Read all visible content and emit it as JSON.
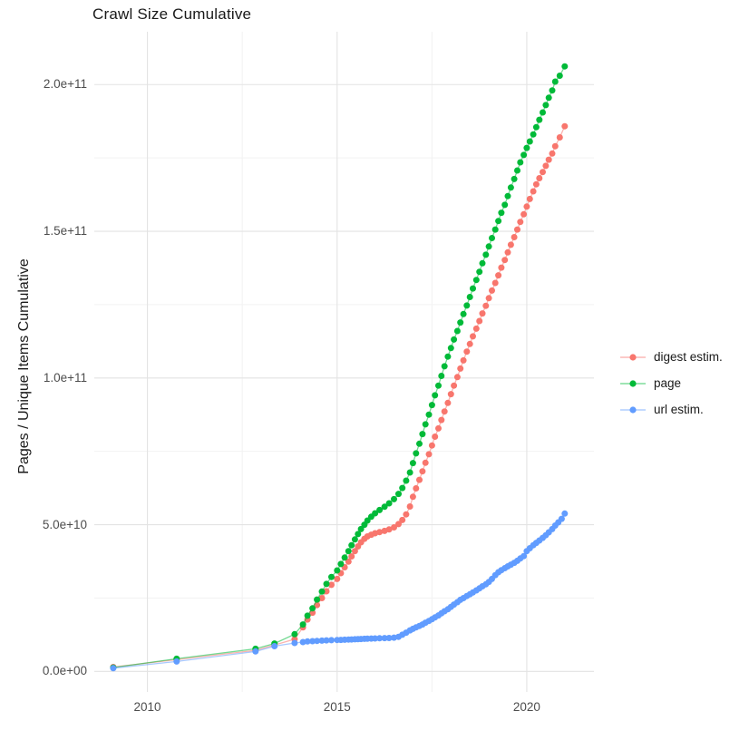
{
  "title": "Crawl Size Cumulative",
  "y_axis_title": "Pages / Unique Items Cumulative",
  "legend": {
    "items": [
      {
        "label": "digest estim."
      },
      {
        "label": "page"
      },
      {
        "label": "url estim."
      }
    ]
  },
  "colors": {
    "grid_major": "#E3E3E3",
    "grid_minor": "#F2F2F2",
    "tick_text": "#4D4D4D"
  },
  "chart_data": {
    "type": "scatter",
    "title": "Crawl Size Cumulative",
    "xlabel": "",
    "ylabel": "Pages / Unique Items Cumulative",
    "xlim": [
      2008.6,
      2021.77
    ],
    "ylim": [
      -7000000000.0,
      218000000000.0
    ],
    "grid": true,
    "legend_position": "right",
    "x_axis": {
      "major": [
        2010,
        2015,
        2020
      ],
      "labels": [
        "2010",
        "2015",
        "2020"
      ],
      "minor": [
        2012.5,
        2017.5
      ]
    },
    "y_axis": {
      "major": [
        0,
        50000000000.0,
        100000000000.0,
        150000000000.0,
        200000000000.0
      ],
      "labels": [
        "0.0e+00",
        "5.0e+10",
        "1.0e+11",
        "1.5e+11",
        "2.0e+11"
      ],
      "minor": [
        25000000000.0,
        75000000000.0,
        125000000000.0,
        175000000000.0
      ]
    },
    "series": [
      {
        "name": "digest estim.",
        "color": "#F8766D",
        "points": [
          [
            2009.1,
            1500000000.0
          ],
          [
            2010.77,
            4000000000.0
          ],
          [
            2012.85,
            7200000000.0
          ],
          [
            2013.35,
            9000000000.0
          ],
          [
            2013.88,
            11000000000.0
          ],
          [
            2014.1,
            15000000000.0
          ],
          [
            2014.22,
            17700000000.0
          ],
          [
            2014.35,
            20000000000.0
          ],
          [
            2014.47,
            22600000000.0
          ],
          [
            2014.6,
            25000000000.0
          ],
          [
            2014.72,
            27300000000.0
          ],
          [
            2014.85,
            29500000000.0
          ],
          [
            2015.0,
            31500000000.0
          ],
          [
            2015.1,
            33500000000.0
          ],
          [
            2015.2,
            35500000000.0
          ],
          [
            2015.3,
            37400000000.0
          ],
          [
            2015.38,
            39200000000.0
          ],
          [
            2015.47,
            41000000000.0
          ],
          [
            2015.55,
            42600000000.0
          ],
          [
            2015.63,
            44000000000.0
          ],
          [
            2015.72,
            45200000000.0
          ],
          [
            2015.8,
            46000000000.0
          ],
          [
            2015.9,
            46600000000.0
          ],
          [
            2016.0,
            47100000000.0
          ],
          [
            2016.12,
            47500000000.0
          ],
          [
            2016.25,
            47900000000.0
          ],
          [
            2016.37,
            48400000000.0
          ],
          [
            2016.5,
            49100000000.0
          ],
          [
            2016.62,
            50200000000.0
          ],
          [
            2016.72,
            51600000000.0
          ],
          [
            2016.82,
            53500000000.0
          ],
          [
            2016.92,
            56200000000.0
          ],
          [
            2017.0,
            59500000000.0
          ],
          [
            2017.08,
            62400000000.0
          ],
          [
            2017.17,
            65300000000.0
          ],
          [
            2017.25,
            68200000000.0
          ],
          [
            2017.33,
            71100000000.0
          ],
          [
            2017.42,
            74000000000.0
          ],
          [
            2017.5,
            77000000000.0
          ],
          [
            2017.58,
            80000000000.0
          ],
          [
            2017.67,
            82800000000.0
          ],
          [
            2017.75,
            85700000000.0
          ],
          [
            2017.83,
            88600000000.0
          ],
          [
            2017.92,
            91500000000.0
          ],
          [
            2018.0,
            94500000000.0
          ],
          [
            2018.08,
            97400000000.0
          ],
          [
            2018.17,
            100300000000.0
          ],
          [
            2018.25,
            103200000000.0
          ],
          [
            2018.33,
            106000000000.0
          ],
          [
            2018.42,
            109000000000.0
          ],
          [
            2018.5,
            111600000000.0
          ],
          [
            2018.58,
            114200000000.0
          ],
          [
            2018.67,
            116800000000.0
          ],
          [
            2018.75,
            119400000000.0
          ],
          [
            2018.83,
            122000000000.0
          ],
          [
            2018.92,
            124600000000.0
          ],
          [
            2019.0,
            127200000000.0
          ],
          [
            2019.08,
            129800000000.0
          ],
          [
            2019.17,
            132400000000.0
          ],
          [
            2019.25,
            135000000000.0
          ],
          [
            2019.33,
            137600000000.0
          ],
          [
            2019.42,
            140200000000.0
          ],
          [
            2019.5,
            142800000000.0
          ],
          [
            2019.58,
            145400000000.0
          ],
          [
            2019.67,
            148000000000.0
          ],
          [
            2019.75,
            150600000000.0
          ],
          [
            2019.83,
            153200000000.0
          ],
          [
            2019.92,
            155800000000.0
          ],
          [
            2020.0,
            158400000000.0
          ],
          [
            2020.08,
            161000000000.0
          ],
          [
            2020.17,
            163600000000.0
          ],
          [
            2020.25,
            166000000000.0
          ],
          [
            2020.33,
            168100000000.0
          ],
          [
            2020.42,
            170200000000.0
          ],
          [
            2020.5,
            172300000000.0
          ],
          [
            2020.58,
            174400000000.0
          ],
          [
            2020.67,
            176500000000.0
          ],
          [
            2020.75,
            179000000000.0
          ],
          [
            2020.87,
            182000000000.0
          ],
          [
            2021.0,
            185800000000.0
          ]
        ]
      },
      {
        "name": "page",
        "color": "#00BA38",
        "points": [
          [
            2009.1,
            1300000000.0
          ],
          [
            2010.77,
            4300000000.0
          ],
          [
            2012.85,
            7700000000.0
          ],
          [
            2013.35,
            9500000000.0
          ],
          [
            2013.88,
            12700000000.0
          ],
          [
            2014.1,
            16000000000.0
          ],
          [
            2014.22,
            19000000000.0
          ],
          [
            2014.35,
            21500000000.0
          ],
          [
            2014.47,
            24500000000.0
          ],
          [
            2014.6,
            27200000000.0
          ],
          [
            2014.72,
            29800000000.0
          ],
          [
            2014.85,
            32200000000.0
          ],
          [
            2015.0,
            34400000000.0
          ],
          [
            2015.1,
            36600000000.0
          ],
          [
            2015.2,
            38800000000.0
          ],
          [
            2015.3,
            41000000000.0
          ],
          [
            2015.38,
            43000000000.0
          ],
          [
            2015.47,
            45000000000.0
          ],
          [
            2015.55,
            46800000000.0
          ],
          [
            2015.63,
            48500000000.0
          ],
          [
            2015.72,
            50000000000.0
          ],
          [
            2015.8,
            51400000000.0
          ],
          [
            2015.9,
            52700000000.0
          ],
          [
            2016.0,
            53900000000.0
          ],
          [
            2016.12,
            55000000000.0
          ],
          [
            2016.25,
            56100000000.0
          ],
          [
            2016.37,
            57300000000.0
          ],
          [
            2016.5,
            58700000000.0
          ],
          [
            2016.62,
            60500000000.0
          ],
          [
            2016.72,
            62500000000.0
          ],
          [
            2016.82,
            65000000000.0
          ],
          [
            2016.92,
            67800000000.0
          ],
          [
            2017.0,
            71000000000.0
          ],
          [
            2017.08,
            74300000000.0
          ],
          [
            2017.17,
            77600000000.0
          ],
          [
            2017.25,
            80900000000.0
          ],
          [
            2017.33,
            84200000000.0
          ],
          [
            2017.42,
            87500000000.0
          ],
          [
            2017.5,
            90800000000.0
          ],
          [
            2017.58,
            94100000000.0
          ],
          [
            2017.67,
            97400000000.0
          ],
          [
            2017.75,
            100700000000.0
          ],
          [
            2017.83,
            104000000000.0
          ],
          [
            2017.92,
            107300000000.0
          ],
          [
            2018.0,
            110200000000.0
          ],
          [
            2018.08,
            113100000000.0
          ],
          [
            2018.17,
            116000000000.0
          ],
          [
            2018.25,
            118900000000.0
          ],
          [
            2018.33,
            121800000000.0
          ],
          [
            2018.42,
            124700000000.0
          ],
          [
            2018.5,
            127600000000.0
          ],
          [
            2018.58,
            130500000000.0
          ],
          [
            2018.67,
            133400000000.0
          ],
          [
            2018.75,
            136200000000.0
          ],
          [
            2018.83,
            139100000000.0
          ],
          [
            2018.92,
            142000000000.0
          ],
          [
            2019.0,
            144800000000.0
          ],
          [
            2019.08,
            147700000000.0
          ],
          [
            2019.17,
            150600000000.0
          ],
          [
            2019.25,
            153500000000.0
          ],
          [
            2019.33,
            156300000000.0
          ],
          [
            2019.42,
            159000000000.0
          ],
          [
            2019.5,
            162000000000.0
          ],
          [
            2019.58,
            164900000000.0
          ],
          [
            2019.67,
            167800000000.0
          ],
          [
            2019.75,
            170700000000.0
          ],
          [
            2019.83,
            173500000000.0
          ],
          [
            2019.92,
            176000000000.0
          ],
          [
            2020.0,
            178400000000.0
          ],
          [
            2020.08,
            180600000000.0
          ],
          [
            2020.17,
            183000000000.0
          ],
          [
            2020.25,
            185500000000.0
          ],
          [
            2020.33,
            188000000000.0
          ],
          [
            2020.42,
            190500000000.0
          ],
          [
            2020.5,
            193000000000.0
          ],
          [
            2020.58,
            195500000000.0
          ],
          [
            2020.67,
            198000000000.0
          ],
          [
            2020.75,
            201000000000.0
          ],
          [
            2020.87,
            203000000000.0
          ],
          [
            2021.0,
            206200000000.0
          ]
        ]
      },
      {
        "name": "url estim.",
        "color": "#619CFF",
        "points": [
          [
            2009.1,
            1100000000.0
          ],
          [
            2010.77,
            3400000000.0
          ],
          [
            2012.85,
            6800000000.0
          ],
          [
            2013.35,
            8600000000.0
          ],
          [
            2013.88,
            9700000000.0
          ],
          [
            2014.1,
            10000000000.0
          ],
          [
            2014.22,
            10200000000.0
          ],
          [
            2014.35,
            10300000000.0
          ],
          [
            2014.47,
            10400000000.0
          ],
          [
            2014.6,
            10500000000.0
          ],
          [
            2014.72,
            10600000000.0
          ],
          [
            2014.85,
            10650000000.0
          ],
          [
            2015.0,
            10700000000.0
          ],
          [
            2015.1,
            10750000000.0
          ],
          [
            2015.2,
            10800000000.0
          ],
          [
            2015.3,
            10850000000.0
          ],
          [
            2015.38,
            10900000000.0
          ],
          [
            2015.47,
            10950000000.0
          ],
          [
            2015.55,
            11000000000.0
          ],
          [
            2015.63,
            11050000000.0
          ],
          [
            2015.72,
            11100000000.0
          ],
          [
            2015.8,
            11150000000.0
          ],
          [
            2015.9,
            11200000000.0
          ],
          [
            2016.0,
            11250000000.0
          ],
          [
            2016.12,
            11300000000.0
          ],
          [
            2016.25,
            11350000000.0
          ],
          [
            2016.37,
            11400000000.0
          ],
          [
            2016.5,
            11500000000.0
          ],
          [
            2016.62,
            11800000000.0
          ],
          [
            2016.72,
            12500000000.0
          ],
          [
            2016.82,
            13200000000.0
          ],
          [
            2016.92,
            14000000000.0
          ],
          [
            2017.0,
            14500000000.0
          ],
          [
            2017.08,
            15000000000.0
          ],
          [
            2017.17,
            15500000000.0
          ],
          [
            2017.25,
            16000000000.0
          ],
          [
            2017.33,
            16600000000.0
          ],
          [
            2017.42,
            17200000000.0
          ],
          [
            2017.5,
            17800000000.0
          ],
          [
            2017.58,
            18400000000.0
          ],
          [
            2017.67,
            19100000000.0
          ],
          [
            2017.75,
            19800000000.0
          ],
          [
            2017.83,
            20500000000.0
          ],
          [
            2017.92,
            21200000000.0
          ],
          [
            2018.0,
            22000000000.0
          ],
          [
            2018.08,
            22800000000.0
          ],
          [
            2018.17,
            23600000000.0
          ],
          [
            2018.25,
            24400000000.0
          ],
          [
            2018.33,
            25000000000.0
          ],
          [
            2018.42,
            25700000000.0
          ],
          [
            2018.5,
            26300000000.0
          ],
          [
            2018.58,
            26900000000.0
          ],
          [
            2018.67,
            27600000000.0
          ],
          [
            2018.75,
            28300000000.0
          ],
          [
            2018.83,
            29000000000.0
          ],
          [
            2018.92,
            29700000000.0
          ],
          [
            2019.0,
            30500000000.0
          ],
          [
            2019.08,
            31500000000.0
          ],
          [
            2019.17,
            32800000000.0
          ],
          [
            2019.25,
            33800000000.0
          ],
          [
            2019.33,
            34500000000.0
          ],
          [
            2019.42,
            35200000000.0
          ],
          [
            2019.5,
            35800000000.0
          ],
          [
            2019.58,
            36400000000.0
          ],
          [
            2019.67,
            37000000000.0
          ],
          [
            2019.75,
            37700000000.0
          ],
          [
            2019.83,
            38500000000.0
          ],
          [
            2019.92,
            39300000000.0
          ],
          [
            2020.0,
            41000000000.0
          ],
          [
            2020.08,
            42000000000.0
          ],
          [
            2020.17,
            43000000000.0
          ],
          [
            2020.25,
            43800000000.0
          ],
          [
            2020.33,
            44600000000.0
          ],
          [
            2020.42,
            45500000000.0
          ],
          [
            2020.5,
            46400000000.0
          ],
          [
            2020.58,
            47400000000.0
          ],
          [
            2020.67,
            48500000000.0
          ],
          [
            2020.75,
            49700000000.0
          ],
          [
            2020.83,
            50800000000.0
          ],
          [
            2020.92,
            52000000000.0
          ],
          [
            2021.0,
            53800000000.0
          ]
        ]
      }
    ]
  }
}
